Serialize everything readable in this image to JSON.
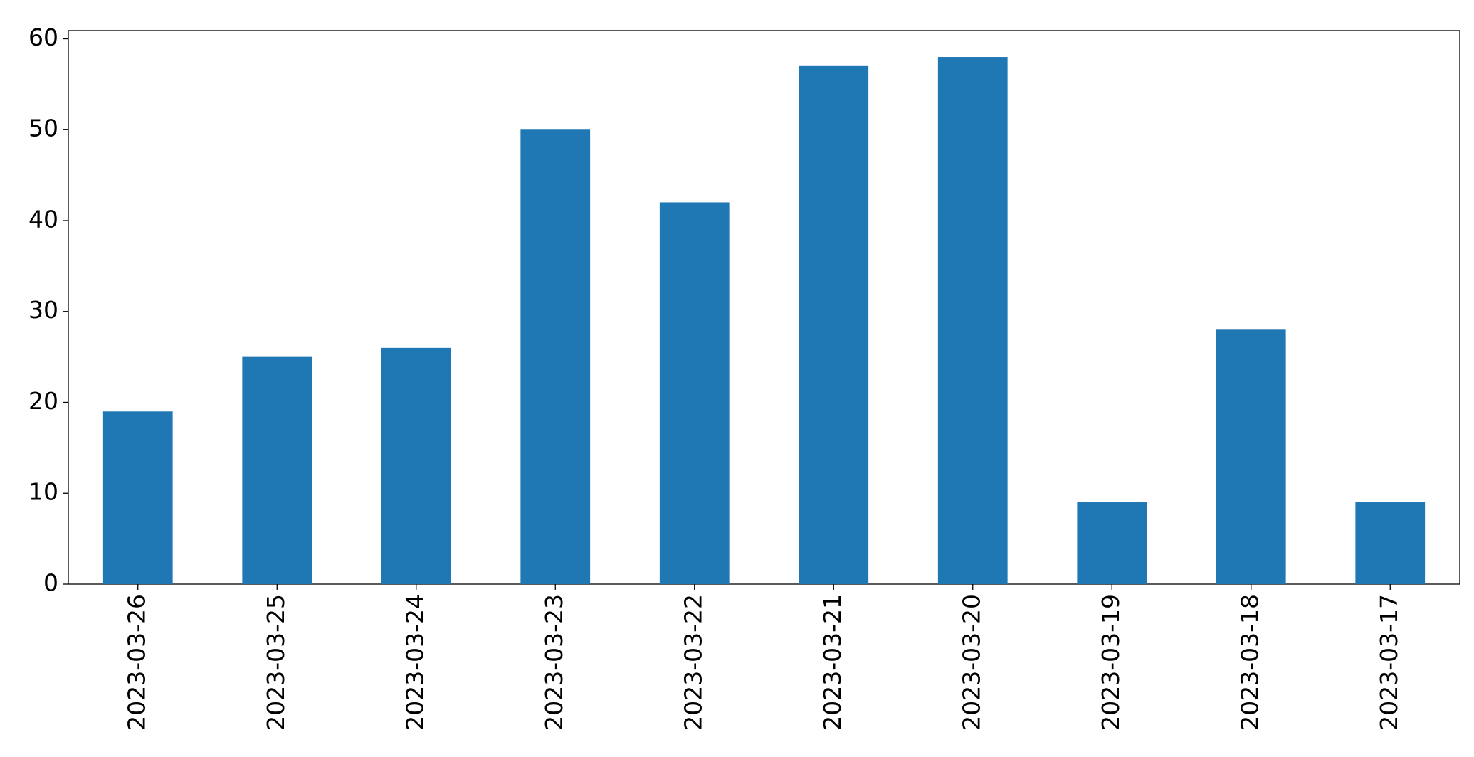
{
  "chart_data": {
    "type": "bar",
    "categories": [
      "2023-03-26",
      "2023-03-25",
      "2023-03-24",
      "2023-03-23",
      "2023-03-22",
      "2023-03-21",
      "2023-03-20",
      "2023-03-19",
      "2023-03-18",
      "2023-03-17"
    ],
    "values": [
      19,
      25,
      26,
      50,
      42,
      57,
      58,
      9,
      28,
      9
    ],
    "color": "#1f77b4",
    "ylim": [
      0,
      60.9
    ],
    "yticks": [
      0,
      10,
      20,
      30,
      40,
      50,
      60
    ],
    "grid": false
  }
}
